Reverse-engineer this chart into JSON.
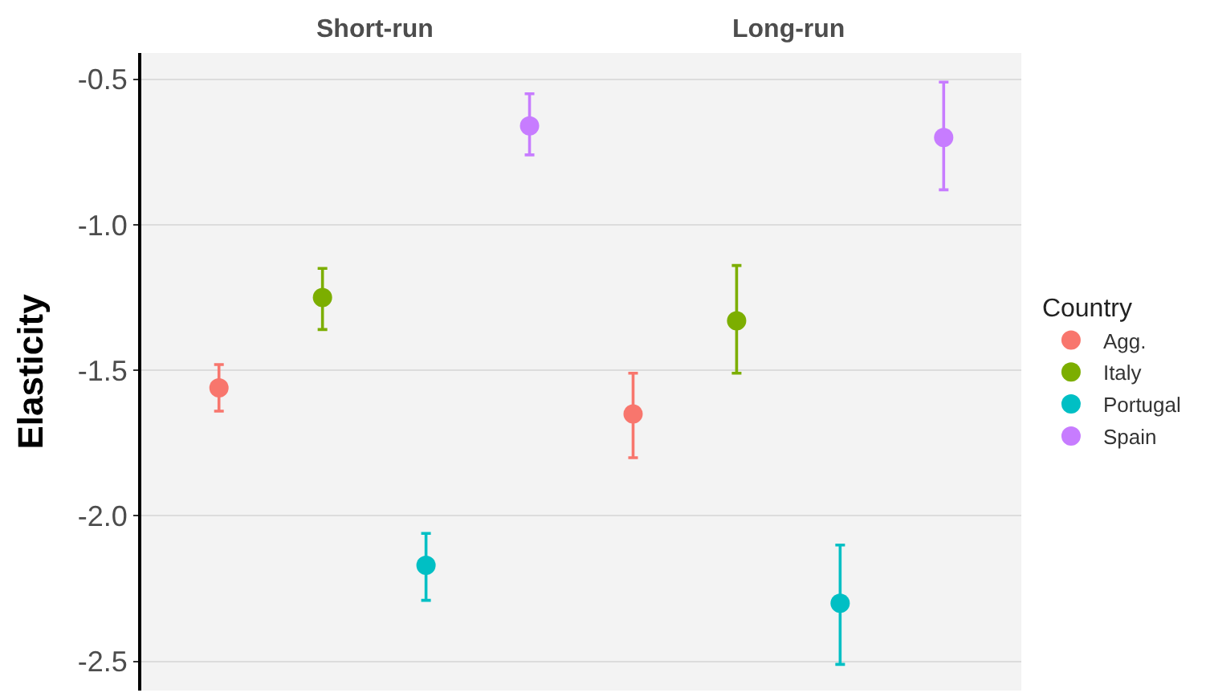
{
  "chart_data": {
    "type": "scatter",
    "ylabel": "Elasticity",
    "legend_title": "Country",
    "annotations": [
      "Short-run",
      "Long-run"
    ],
    "categories": [
      null,
      null,
      null,
      null,
      null,
      null,
      null,
      null
    ],
    "ylim": [
      -2.6,
      -0.41
    ],
    "yticks": [
      {
        "value": -0.5,
        "label": "-0.5"
      },
      {
        "value": -1.0,
        "label": "-1.0"
      },
      {
        "value": -1.5,
        "label": "-1.5"
      },
      {
        "value": -2.0,
        "label": "-2.0"
      },
      {
        "value": -2.5,
        "label": "-2.5"
      }
    ],
    "grid": "y",
    "tick_labels": "y",
    "marker": "circle",
    "legend": "right",
    "series": [
      {
        "name": "Agg.",
        "color": "#f8766d",
        "values": [
          -1.56,
          null,
          null,
          null,
          -1.65,
          null,
          null,
          null
        ],
        "errors": [
          [
            -1.64,
            -1.48
          ],
          null,
          null,
          null,
          [
            -1.8,
            -1.51
          ],
          null,
          null,
          null
        ]
      },
      {
        "name": "Italy",
        "color": "#7cae00",
        "values": [
          null,
          -1.25,
          null,
          null,
          null,
          -1.33,
          null,
          null
        ],
        "errors": [
          null,
          [
            -1.36,
            -1.15
          ],
          null,
          null,
          null,
          [
            -1.51,
            -1.14
          ],
          null,
          null
        ]
      },
      {
        "name": "Portugal",
        "color": "#00bfc4",
        "values": [
          null,
          null,
          -2.17,
          null,
          null,
          null,
          -2.3,
          null
        ],
        "errors": [
          null,
          null,
          [
            -2.29,
            -2.06
          ],
          null,
          null,
          null,
          [
            -2.51,
            -2.1
          ],
          null
        ]
      },
      {
        "name": "Spain",
        "color": "#c77cff",
        "values": [
          null,
          null,
          null,
          -0.66,
          null,
          null,
          null,
          -0.7
        ],
        "errors": [
          null,
          null,
          null,
          [
            -0.76,
            -0.55
          ],
          null,
          null,
          null,
          [
            -0.88,
            -0.51
          ]
        ]
      }
    ]
  }
}
